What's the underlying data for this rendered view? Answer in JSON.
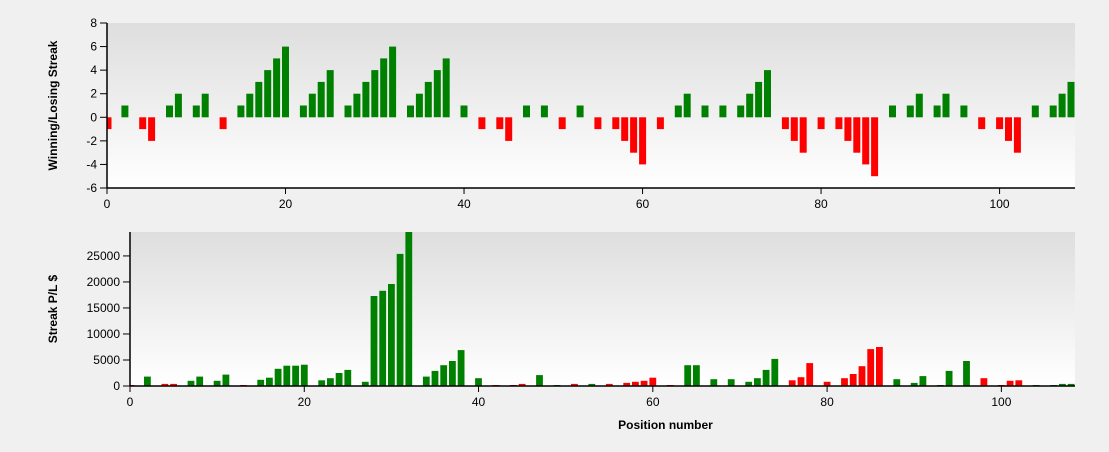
{
  "colors": {
    "background": "#f0f0f0",
    "plot_top": "#dedede",
    "plot_bottom": "#ffffff",
    "win": "#008000",
    "loss": "#ff0000",
    "axis": "#000000"
  },
  "chart_data": [
    {
      "type": "bar",
      "title": "",
      "xlabel": "",
      "ylabel": "Winning/Losing Streak",
      "xlim": [
        0,
        108
      ],
      "ylim": [
        -6,
        8
      ],
      "xticks": [
        0,
        20,
        40,
        60,
        80,
        100
      ],
      "yticks": [
        -6,
        -4,
        -2,
        0,
        2,
        4,
        6,
        8
      ],
      "grid": false,
      "legend": null,
      "x": [
        0,
        2,
        4,
        5,
        7,
        8,
        10,
        11,
        13,
        15,
        16,
        17,
        18,
        19,
        20,
        22,
        23,
        24,
        25,
        27,
        28,
        29,
        30,
        31,
        32,
        34,
        35,
        36,
        37,
        38,
        40,
        42,
        44,
        45,
        47,
        49,
        51,
        53,
        55,
        57,
        58,
        59,
        60,
        62,
        64,
        65,
        67,
        69,
        71,
        72,
        73,
        74,
        76,
        77,
        78,
        80,
        82,
        83,
        84,
        85,
        86,
        88,
        90,
        91,
        93,
        94,
        96,
        98,
        100,
        101,
        102,
        104,
        106,
        107,
        108
      ],
      "values": [
        -1,
        1,
        -1,
        -2,
        1,
        2,
        1,
        2,
        -1,
        1,
        2,
        3,
        4,
        5,
        6,
        1,
        2,
        3,
        4,
        1,
        2,
        3,
        4,
        5,
        6,
        1,
        2,
        3,
        4,
        5,
        1,
        -1,
        -1,
        -2,
        1,
        1,
        -1,
        1,
        -1,
        -1,
        -2,
        -3,
        -4,
        -1,
        1,
        2,
        1,
        1,
        1,
        2,
        3,
        4,
        -1,
        -2,
        -3,
        -1,
        -1,
        -2,
        -3,
        -4,
        -5,
        1,
        1,
        2,
        1,
        2,
        1,
        -1,
        -1,
        -2,
        -3,
        1,
        1,
        2,
        3
      ]
    },
    {
      "type": "bar",
      "title": "",
      "xlabel": "Position number",
      "ylabel": "Streak P/L $",
      "xlim": [
        0,
        108
      ],
      "ylim": [
        0,
        29600
      ],
      "xticks": [
        0,
        20,
        40,
        60,
        80,
        100
      ],
      "yticks": [
        0,
        5000,
        10000,
        15000,
        20000,
        25000
      ],
      "grid": false,
      "legend": null,
      "x": [
        0,
        2,
        4,
        5,
        7,
        8,
        10,
        11,
        13,
        15,
        16,
        17,
        18,
        19,
        20,
        22,
        23,
        24,
        25,
        27,
        28,
        29,
        30,
        31,
        32,
        34,
        35,
        36,
        37,
        38,
        40,
        42,
        44,
        45,
        47,
        49,
        51,
        53,
        55,
        57,
        58,
        59,
        60,
        62,
        64,
        65,
        67,
        69,
        71,
        72,
        73,
        74,
        76,
        77,
        78,
        80,
        82,
        83,
        84,
        85,
        86,
        88,
        90,
        91,
        93,
        94,
        96,
        98,
        100,
        101,
        102,
        104,
        106,
        107,
        108
      ],
      "values": [
        200,
        1800,
        400,
        400,
        1000,
        1800,
        1000,
        2200,
        200,
        1200,
        1600,
        3300,
        3900,
        3900,
        4100,
        1100,
        1500,
        2500,
        3100,
        800,
        17300,
        18300,
        19600,
        25400,
        30000,
        1800,
        2900,
        4000,
        4800,
        6900,
        1500,
        200,
        200,
        400,
        2100,
        200,
        400,
        400,
        400,
        600,
        800,
        1000,
        1600,
        200,
        4000,
        4000,
        1300,
        1300,
        800,
        1500,
        3100,
        5200,
        1100,
        1700,
        4400,
        800,
        1500,
        2300,
        3800,
        7100,
        7500,
        1300,
        600,
        1900,
        200,
        2900,
        4800,
        1500,
        200,
        1000,
        1100,
        200,
        200,
        400,
        400
      ],
      "sign": [
        "loss",
        "win",
        "loss",
        "loss",
        "win",
        "win",
        "win",
        "win",
        "loss",
        "win",
        "win",
        "win",
        "win",
        "win",
        "win",
        "win",
        "win",
        "win",
        "win",
        "win",
        "win",
        "win",
        "win",
        "win",
        "win",
        "win",
        "win",
        "win",
        "win",
        "win",
        "win",
        "loss",
        "loss",
        "loss",
        "win",
        "win",
        "loss",
        "win",
        "loss",
        "loss",
        "loss",
        "loss",
        "loss",
        "loss",
        "win",
        "win",
        "win",
        "win",
        "win",
        "win",
        "win",
        "win",
        "loss",
        "loss",
        "loss",
        "loss",
        "loss",
        "loss",
        "loss",
        "loss",
        "loss",
        "win",
        "win",
        "win",
        "win",
        "win",
        "win",
        "loss",
        "loss",
        "loss",
        "loss",
        "win",
        "win",
        "win",
        "win"
      ]
    }
  ]
}
